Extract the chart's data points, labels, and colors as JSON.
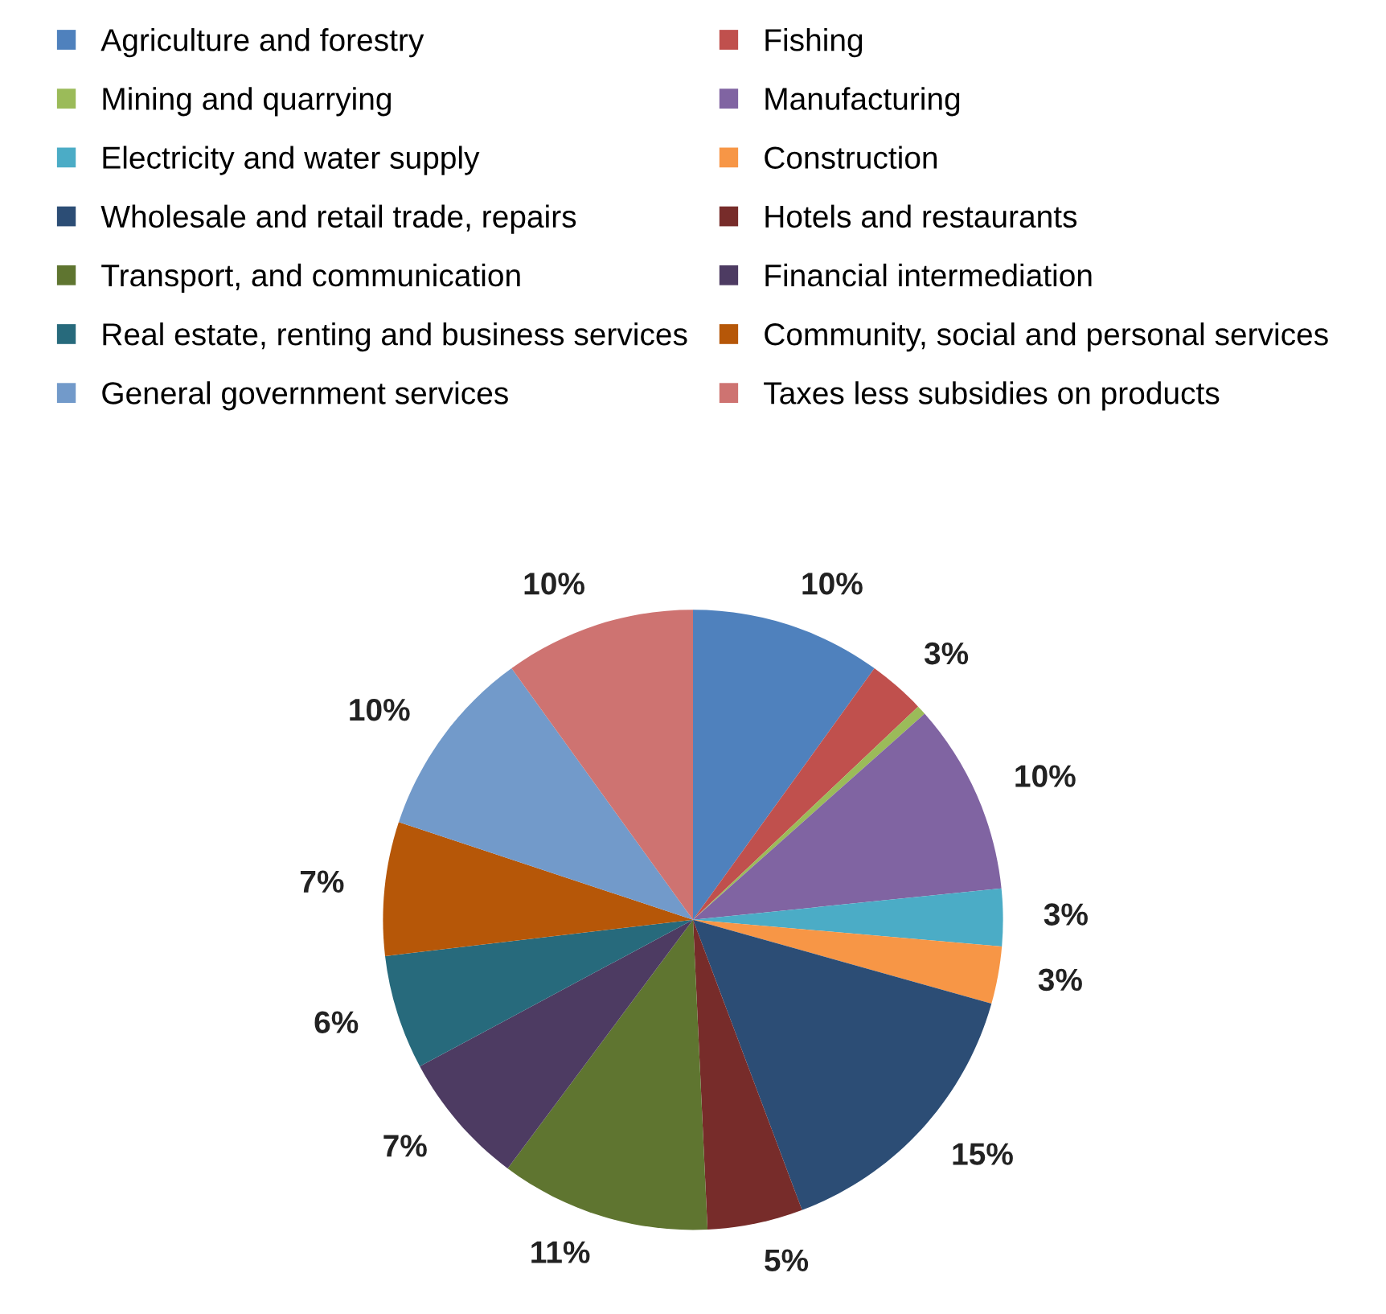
{
  "chart_data": {
    "type": "pie",
    "categories": [
      "Agriculture and forestry",
      "Fishing",
      "Mining and quarrying",
      "Manufacturing",
      "Electricity and water supply",
      "Construction",
      "Wholesale and retail trade, repairs",
      "Hotels and restaurants",
      "Transport, and communication",
      "Financial intermediation",
      "Real estate, renting and business services",
      "Community, social and personal services",
      "General government services",
      "Taxes less subsidies on products"
    ],
    "values": [
      10,
      3,
      0.5,
      10,
      3,
      3,
      15,
      5,
      11,
      7,
      6,
      7,
      10,
      10
    ],
    "value_labels": [
      "10%",
      "3%",
      null,
      "10%",
      "3%",
      "3%",
      "15%",
      "5%",
      "11%",
      "7%",
      "6%",
      "7%",
      "10%",
      "10%"
    ],
    "colors": [
      "#4f81bd",
      "#c0504d",
      "#9bbb59",
      "#8064a2",
      "#4bacc6",
      "#f79646",
      "#2c4d75",
      "#772c2a",
      "#5f7530",
      "#4d3b62",
      "#276a7c",
      "#b65708",
      "#729aca",
      "#ce7371"
    ],
    "legend": "top"
  }
}
